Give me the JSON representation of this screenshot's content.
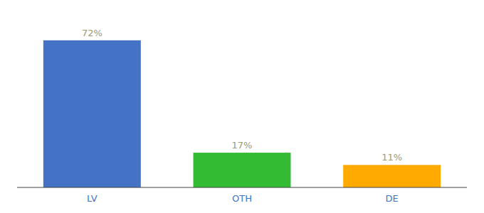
{
  "chart_data": {
    "type": "bar",
    "categories": [
      "LV",
      "OTH",
      "DE"
    ],
    "values": [
      72,
      17,
      11
    ],
    "value_labels": [
      "72%",
      "17%",
      "11%"
    ],
    "colors": [
      "#4472c4",
      "#33bb33",
      "#ffaa00"
    ],
    "ylim": [
      0,
      82
    ],
    "data_labels": true,
    "tick_labels": "x"
  }
}
